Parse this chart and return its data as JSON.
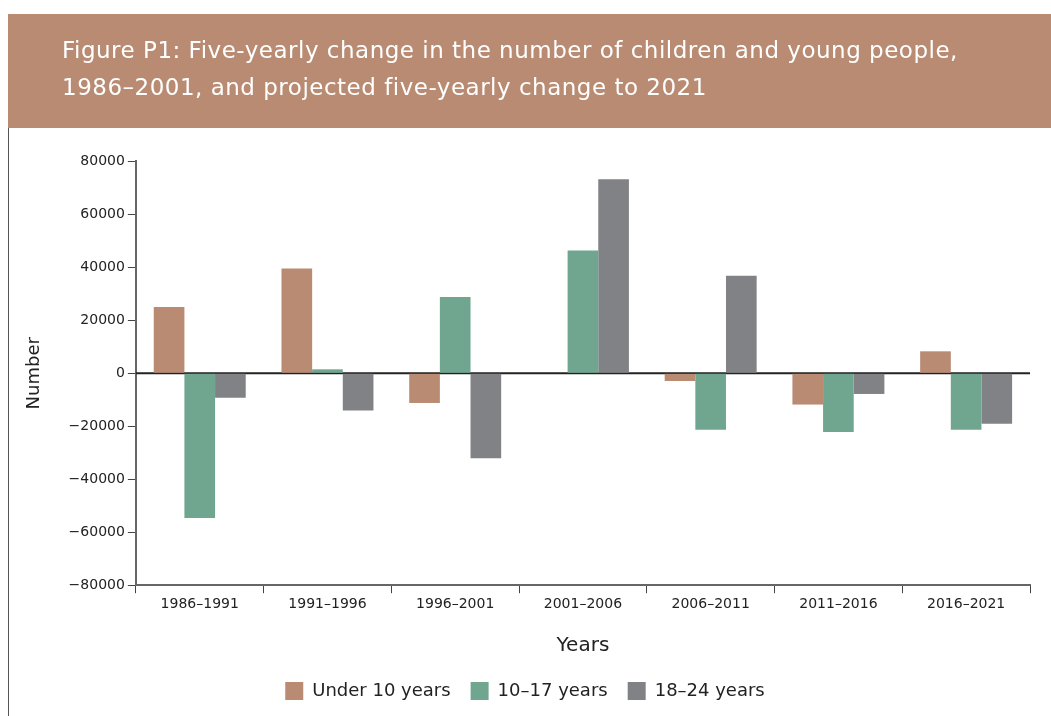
{
  "chart_data": {
    "type": "bar",
    "title": "Figure P1: Five-yearly change in the number of children and young people, 1986–2001, and projected five-yearly change to 2021",
    "xlabel": "Years",
    "ylabel": "Number",
    "categories": [
      "1986–1991",
      "1991–1996",
      "1996–2001",
      "2001–2006",
      "2006–2011",
      "2011–2016",
      "2016–2021"
    ],
    "series": [
      {
        "name": "Under 10 years",
        "color": "#b88b72",
        "values": [
          25000,
          39600,
          -11200,
          0,
          -2900,
          -11800,
          8300
        ]
      },
      {
        "name": "10–17 years",
        "color": "#70a690",
        "values": [
          -54600,
          1500,
          28800,
          46400,
          -21300,
          -22200,
          -21300
        ]
      },
      {
        "name": "18–24 years",
        "color": "#818286",
        "values": [
          -9200,
          -14000,
          -32100,
          73300,
          36800,
          -7800,
          -19000
        ]
      }
    ],
    "ylim": [
      -80000,
      80000
    ],
    "yticks": [
      -80000,
      -60000,
      -40000,
      -20000,
      0,
      20000,
      40000,
      60000,
      80000
    ],
    "ref_lines": [
      {
        "axis": "y",
        "value": 0,
        "color": "#222222"
      }
    ],
    "grid": false,
    "legend": "bottom"
  }
}
